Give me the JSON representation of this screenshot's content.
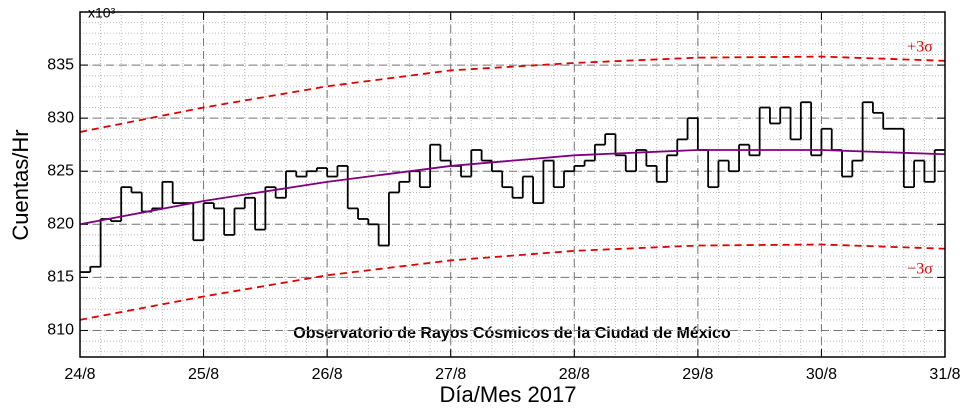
{
  "chart_data": {
    "type": "step",
    "axis_multiplier": "x10³",
    "xlabel": "Día/Mes 2017",
    "ylabel": "Cuentas/Hr",
    "annotations": [
      "Observatorio de Rayos Cósmicos de la Ciudad de México",
      "+3σ",
      "−3σ"
    ],
    "xlim": [
      0,
      168
    ],
    "ylim": [
      807.5,
      840
    ],
    "xticks": [
      {
        "value": 0,
        "label": "24/8"
      },
      {
        "value": 24,
        "label": "25/8"
      },
      {
        "value": 48,
        "label": "26/8"
      },
      {
        "value": 72,
        "label": "27/8"
      },
      {
        "value": 96,
        "label": "28/8"
      },
      {
        "value": 120,
        "label": "29/8"
      },
      {
        "value": 144,
        "label": "30/8"
      },
      {
        "value": 168,
        "label": "31/8"
      }
    ],
    "yticks": [
      810,
      815,
      820,
      825,
      830,
      835
    ],
    "grid": true,
    "minor_grid": {
      "x_step": 4,
      "y_step": 1
    },
    "series": [
      {
        "color": "#000000",
        "style": "step",
        "x": [
          0,
          2,
          4,
          6,
          8,
          10,
          12,
          14,
          16,
          18,
          20,
          22,
          24,
          26,
          28,
          30,
          32,
          34,
          36,
          38,
          40,
          42,
          44,
          46,
          48,
          50,
          52,
          54,
          56,
          58,
          60,
          62,
          64,
          66,
          68,
          70,
          72,
          74,
          76,
          78,
          80,
          82,
          84,
          86,
          88,
          90,
          92,
          94,
          96,
          98,
          100,
          102,
          104,
          106,
          108,
          110,
          112,
          114,
          116,
          118,
          120,
          122,
          124,
          126,
          128,
          130,
          132,
          134,
          136,
          138,
          140,
          142,
          144,
          146,
          148,
          150,
          152,
          154,
          156,
          158,
          160,
          162,
          164,
          166
        ],
        "values": [
          815.5,
          816,
          820.5,
          820.3,
          823.5,
          823,
          821.2,
          821.5,
          824,
          822,
          822,
          818.5,
          822,
          821.5,
          819,
          821.5,
          822.5,
          819.5,
          823.5,
          822.5,
          825,
          824.5,
          825,
          825.3,
          824.5,
          825.5,
          821.5,
          820.5,
          820,
          818,
          823,
          824,
          825,
          823.5,
          827.5,
          826,
          825.5,
          824.5,
          827,
          826,
          825,
          823.5,
          822.5,
          824.5,
          822,
          826,
          823.5,
          825,
          825.5,
          826,
          827.5,
          828.5,
          826.5,
          825,
          827,
          825.5,
          824,
          826.5,
          828,
          830,
          827,
          823.5,
          826,
          825,
          827.5,
          826.5,
          831,
          829.5,
          831,
          828,
          831.5,
          826.5,
          829,
          827,
          824.5,
          826,
          831.5,
          830.5,
          829,
          829,
          823.5,
          826,
          824,
          827
        ]
      },
      {
        "color": "#800080",
        "style": "solid",
        "x": [
          0,
          24,
          48,
          72,
          96,
          120,
          144,
          168
        ],
        "values": [
          820,
          822.2,
          824,
          825.5,
          826.5,
          827,
          827,
          826.6
        ]
      },
      {
        "color": "#e00000",
        "style": "dashed",
        "x": [
          0,
          24,
          48,
          72,
          96,
          120,
          144,
          168
        ],
        "values": [
          828.7,
          831,
          833,
          834.5,
          835.2,
          835.7,
          835.8,
          835.4
        ]
      },
      {
        "color": "#e00000",
        "style": "dashed",
        "x": [
          0,
          24,
          48,
          72,
          96,
          120,
          144,
          168
        ],
        "values": [
          811,
          813.2,
          815.2,
          816.6,
          817.5,
          818,
          818.1,
          817.7
        ]
      }
    ]
  }
}
